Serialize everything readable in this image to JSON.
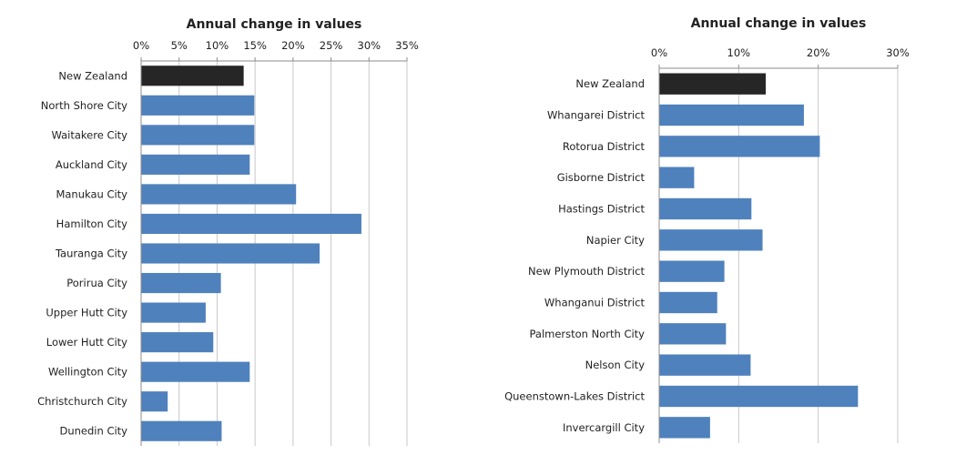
{
  "chart_data": [
    {
      "type": "bar",
      "orientation": "horizontal",
      "title": "Annual change in values",
      "xlim": [
        0,
        35
      ],
      "xticks": [
        "0%",
        "5%",
        "10%",
        "15%",
        "20%",
        "25%",
        "30%",
        "35%"
      ],
      "tick_step": 5,
      "grid": true,
      "categories": [
        "New Zealand",
        "North Shore City",
        "Waitakere City",
        "Auckland City",
        "Manukau City",
        "Hamilton City",
        "Tauranga City",
        "Porirua City",
        "Upper Hutt City",
        "Lower Hutt City",
        "Wellington City",
        "Christchurch City",
        "Dunedin City"
      ],
      "values": [
        13.5,
        14.9,
        14.9,
        14.3,
        20.4,
        29.0,
        23.5,
        10.5,
        8.5,
        9.5,
        14.3,
        3.5,
        10.6
      ],
      "colors": [
        "#262626",
        "#4f81bd",
        "#4f81bd",
        "#4f81bd",
        "#4f81bd",
        "#4f81bd",
        "#4f81bd",
        "#4f81bd",
        "#4f81bd",
        "#4f81bd",
        "#4f81bd",
        "#4f81bd",
        "#4f81bd"
      ]
    },
    {
      "type": "bar",
      "orientation": "horizontal",
      "title": "Annual change in values",
      "xlim": [
        0,
        30
      ],
      "xticks": [
        "0%",
        "10%",
        "20%",
        "30%"
      ],
      "tick_step": 10,
      "grid": true,
      "categories": [
        "New Zealand",
        "Whangarei District",
        "Rotorua District",
        "Gisborne District",
        "Hastings District",
        "Napier City",
        "New Plymouth District",
        "Whanganui District",
        "Palmerston North City",
        "Nelson City",
        "Queenstown-Lakes District",
        "Invercargill City"
      ],
      "values": [
        13.4,
        18.2,
        20.2,
        4.4,
        11.6,
        13.0,
        8.2,
        7.3,
        8.4,
        11.5,
        25.0,
        6.4
      ],
      "colors": [
        "#262626",
        "#4f81bd",
        "#4f81bd",
        "#4f81bd",
        "#4f81bd",
        "#4f81bd",
        "#4f81bd",
        "#4f81bd",
        "#4f81bd",
        "#4f81bd",
        "#4f81bd",
        "#4f81bd"
      ]
    }
  ]
}
